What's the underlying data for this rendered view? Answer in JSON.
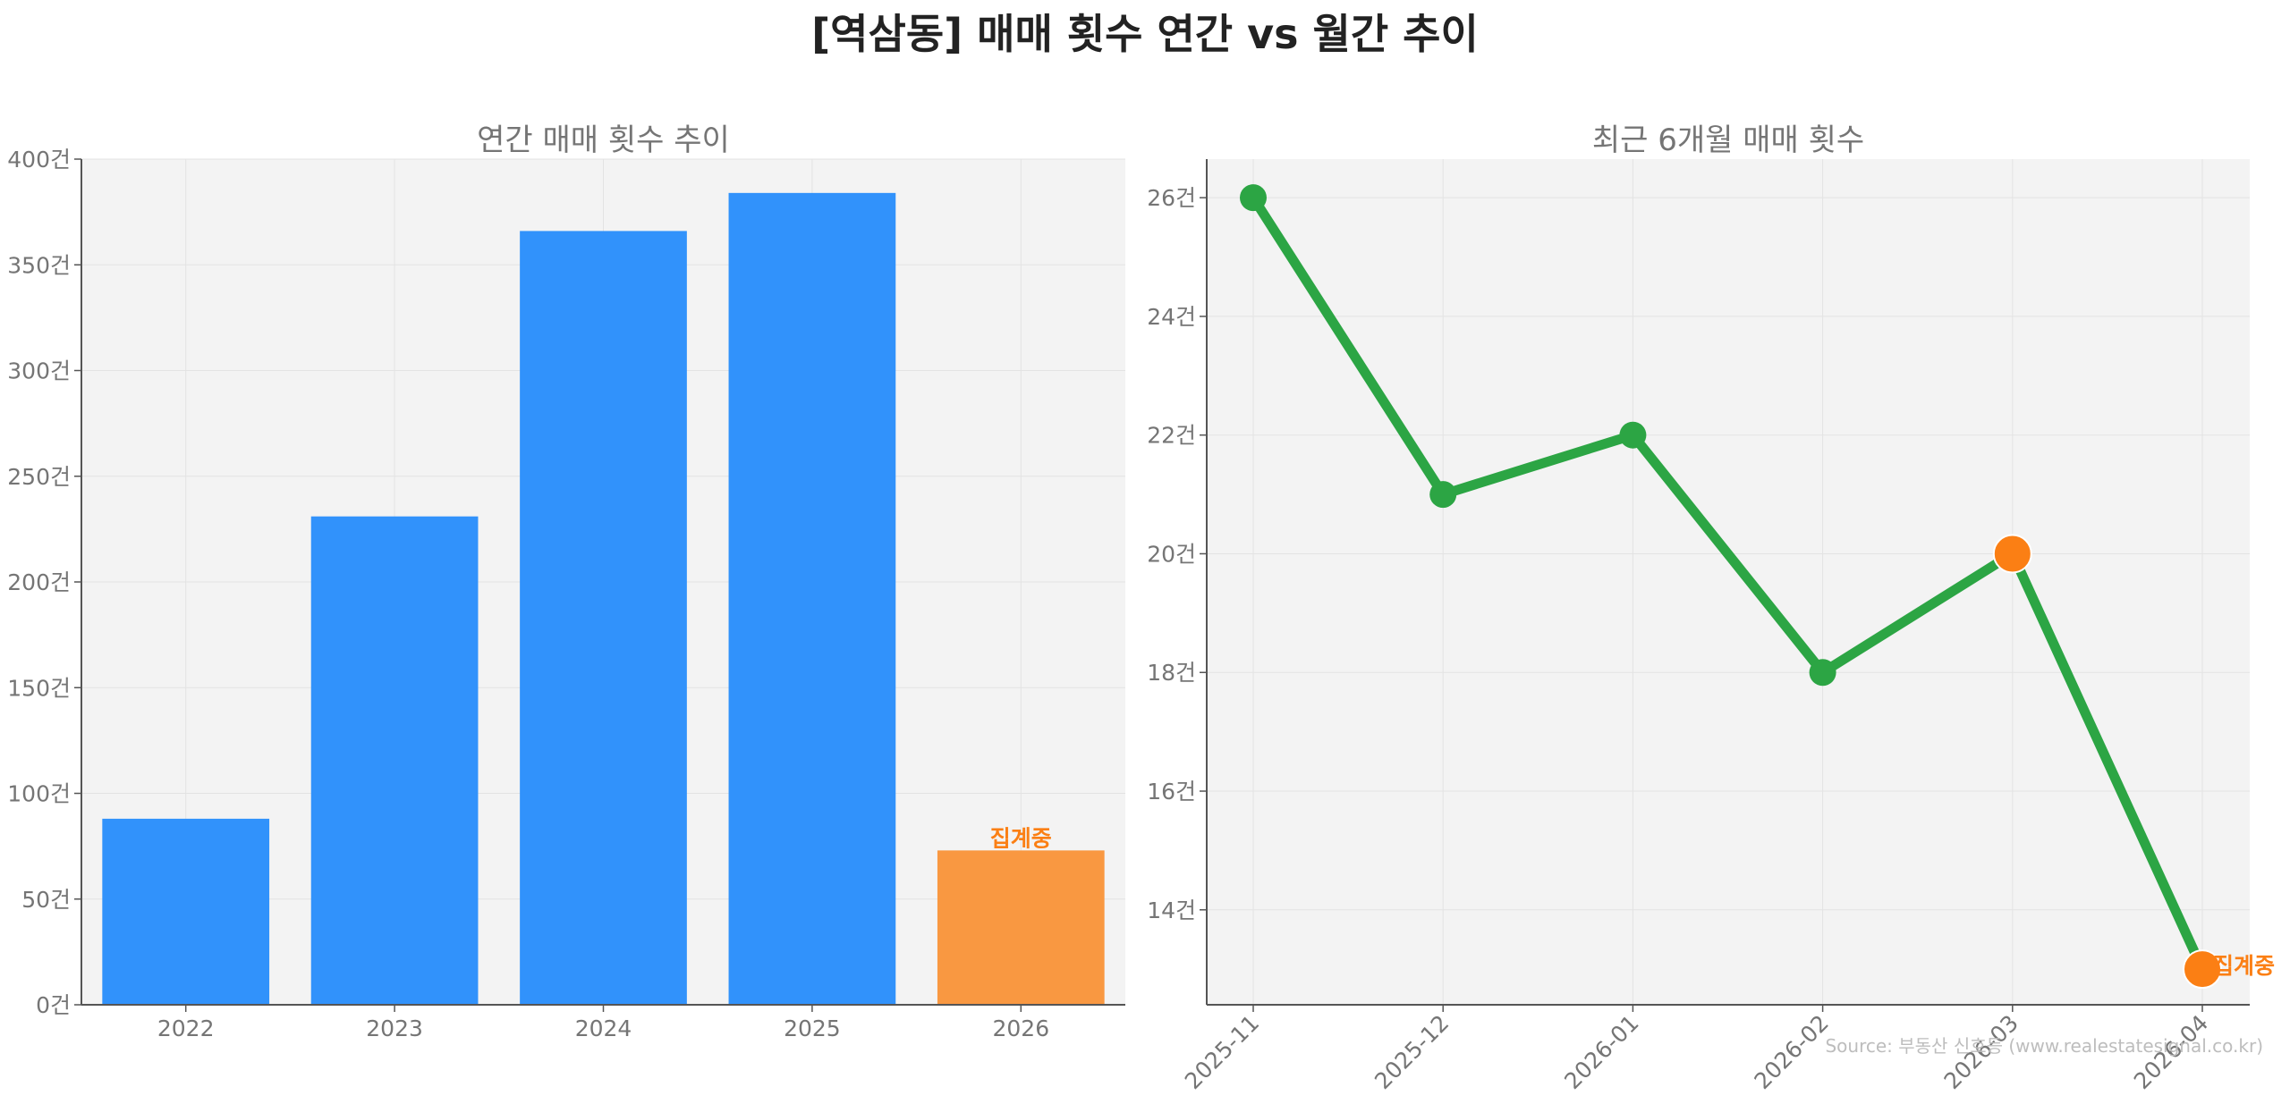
{
  "title": "[역삼동] 매매 횟수 연간 vs 월간 추이",
  "source": "Source: 부동산 신호등 (www.realestatesignal.co.kr)",
  "colors": {
    "bar": "#3192fb",
    "bar_highlight": "#f99841",
    "line": "#2ca544",
    "marker_highlight": "#fb7f14",
    "highlight_text": "#fb7f14",
    "panel_bg": "#f3f3f3",
    "grid": "#e3e3e3",
    "axis": "#555555",
    "tick_text": "#757575",
    "subtitle_text": "#757575"
  },
  "chart_data": [
    {
      "type": "bar",
      "title": "연간 매매 횟수 추이",
      "categories": [
        "2022",
        "2023",
        "2024",
        "2025",
        "2026"
      ],
      "values": [
        88,
        231,
        366,
        384,
        73
      ],
      "ylim": [
        0,
        400
      ],
      "yticks": [
        0,
        50,
        100,
        150,
        200,
        250,
        300,
        350,
        400
      ],
      "ytick_suffix": "건",
      "highlight_index": 4,
      "highlight_label": "집계중",
      "grid": true
    },
    {
      "type": "line",
      "title": "최근 6개월 매매 횟수",
      "x": [
        "2025-11",
        "2025-12",
        "2026-01",
        "2026-02",
        "2026-03",
        "2026-04"
      ],
      "values": [
        26,
        21,
        22,
        18,
        20,
        13
      ],
      "ylim": [
        12.4,
        26.65
      ],
      "yticks": [
        14,
        16,
        18,
        20,
        22,
        24,
        26
      ],
      "ytick_suffix": "건",
      "highlight_indices": [
        4,
        5
      ],
      "highlight_label": "집계중",
      "grid": true
    }
  ]
}
